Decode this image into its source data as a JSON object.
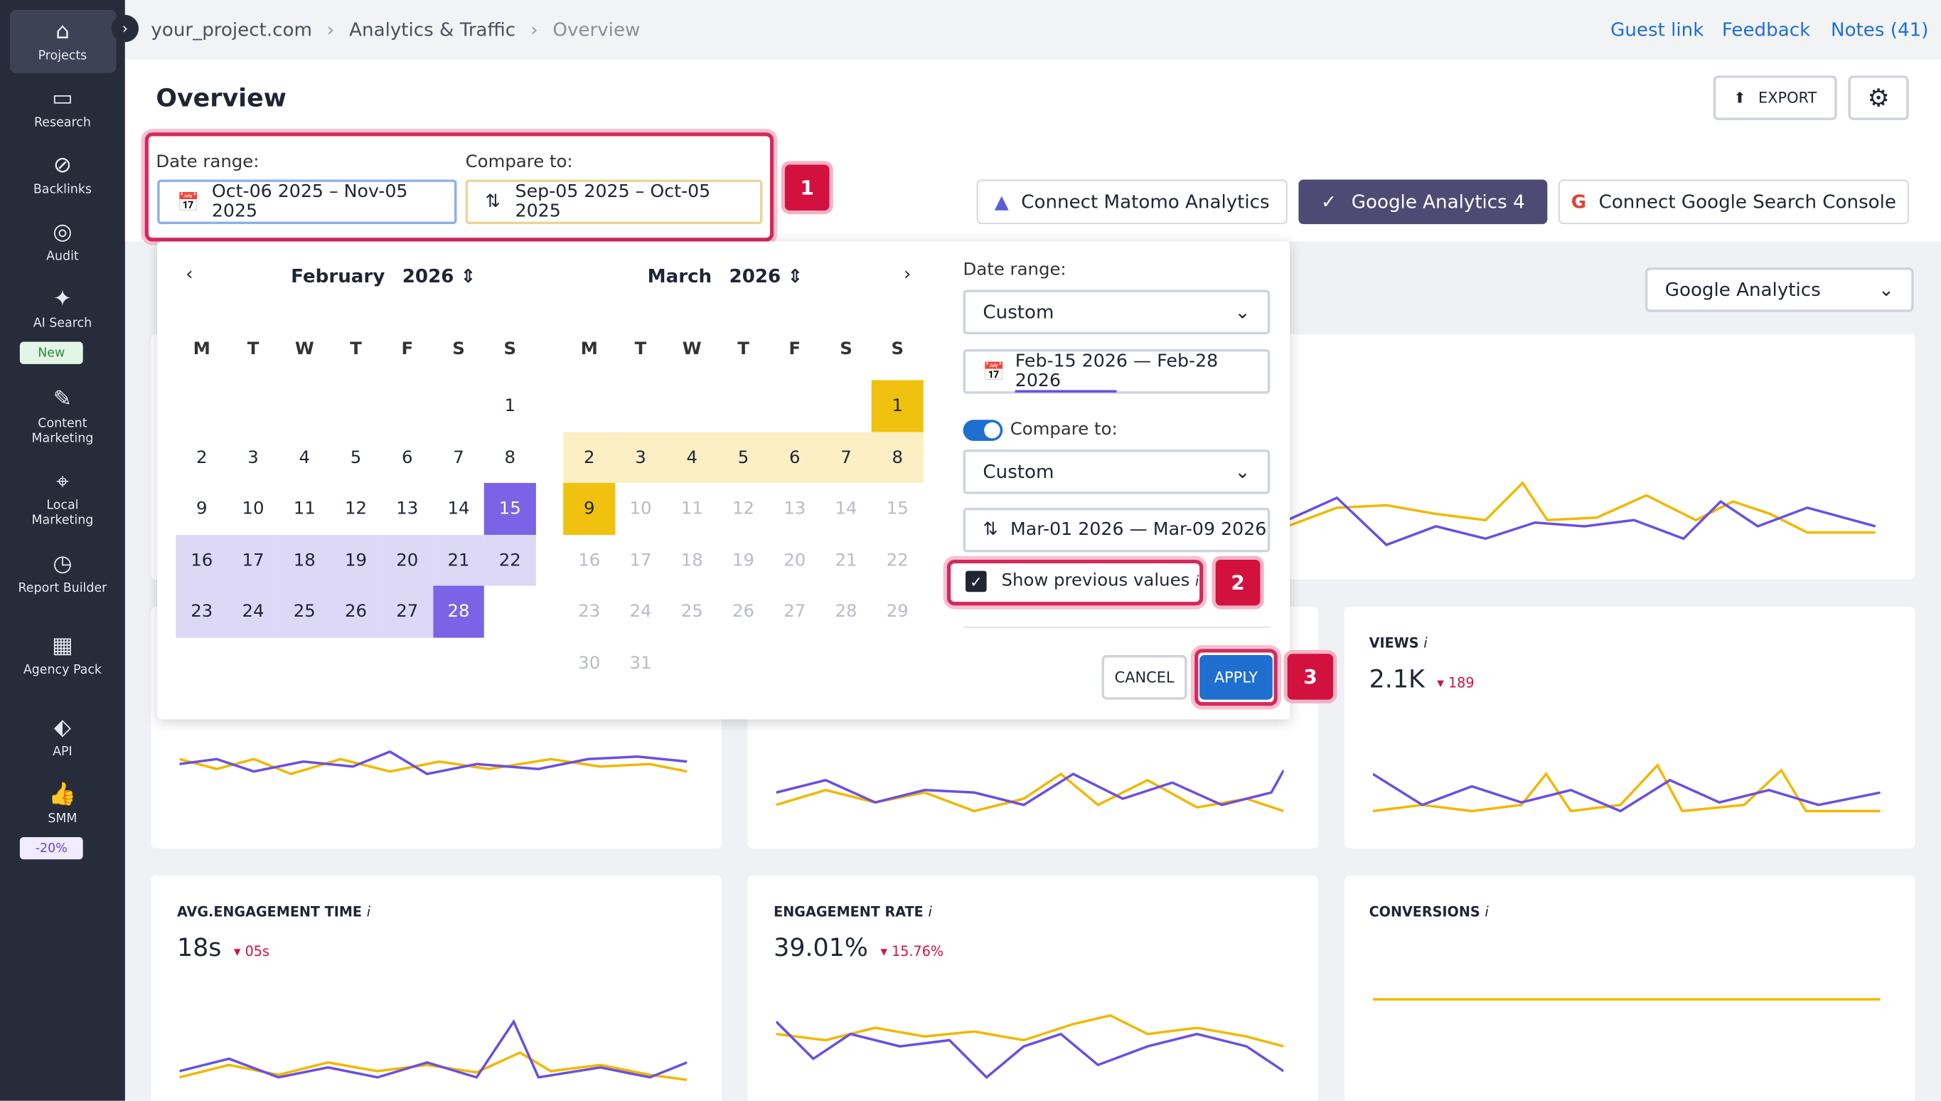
{
  "sidebar": {
    "items": [
      "Projects",
      "Research",
      "Backlinks",
      "Audit",
      "AI Search",
      "Content Marketing",
      "Local Marketing",
      "Report Builder",
      "Agency Pack",
      "API",
      "SMM"
    ],
    "ai_search_badge": "New",
    "smm_badge": "-20%"
  },
  "breadcrumb": [
    "your_project.com",
    "Analytics & Traffic",
    "Overview"
  ],
  "header_links": [
    "Guest link",
    "Feedback",
    "Notes (41)"
  ],
  "page_title": "Overview",
  "export": "EXPORT",
  "date_range_label": "Date range:",
  "date_range_value": "Oct-06 2025 – Nov-05 2025",
  "compare_label": "Compare to:",
  "compare_value": "Sep-05 2025 – Oct-05 2025",
  "integrations": [
    "Connect Matomo Analytics",
    "Google Analytics 4",
    "Connect Google Search Console"
  ],
  "source_select": "Google Analytics",
  "calendar": {
    "weekdays": [
      "M",
      "T",
      "W",
      "T",
      "F",
      "S",
      "S"
    ],
    "months": [
      {
        "month": "February",
        "year": "2026",
        "weeks": [
          [
            null,
            null,
            null,
            null,
            null,
            null,
            1
          ],
          [
            2,
            3,
            4,
            5,
            6,
            7,
            8
          ],
          [
            9,
            10,
            11,
            12,
            13,
            14,
            15
          ],
          [
            16,
            17,
            18,
            19,
            20,
            21,
            22
          ],
          [
            23,
            24,
            25,
            26,
            27,
            28,
            null
          ]
        ]
      },
      {
        "month": "March",
        "year": "2026",
        "weeks": [
          [
            null,
            null,
            null,
            null,
            null,
            null,
            1
          ],
          [
            2,
            3,
            4,
            5,
            6,
            7,
            8
          ],
          [
            9,
            10,
            11,
            12,
            13,
            14,
            15
          ],
          [
            16,
            17,
            18,
            19,
            20,
            21,
            22
          ],
          [
            23,
            24,
            25,
            26,
            27,
            28,
            29
          ],
          [
            30,
            31,
            null,
            null,
            null,
            null,
            null
          ]
        ]
      }
    ]
  },
  "panel": {
    "date_range_label": "Date range:",
    "date_range_select": "Custom",
    "date_range_value": "Feb-15 2026 — Feb-28 2026",
    "compare_label": "Compare to:",
    "compare_select": "Custom",
    "compare_value": "Mar-01 2026 — Mar-09 2026",
    "show_previous": "Show previous values",
    "cancel": "CANCEL",
    "apply": "APPLY"
  },
  "callouts": [
    "1",
    "2",
    "3"
  ],
  "info": "i",
  "cards": [
    {
      "title": "VIEWS",
      "value": "2.1K",
      "change": "189"
    },
    {
      "title": "AVG.ENGAGEMENT TIME",
      "value": "18s",
      "change": "05s"
    },
    {
      "title": "ENGAGEMENT RATE",
      "value": "39.01%",
      "change": "15.76%"
    },
    {
      "title": "CONVERSIONS"
    }
  ]
}
